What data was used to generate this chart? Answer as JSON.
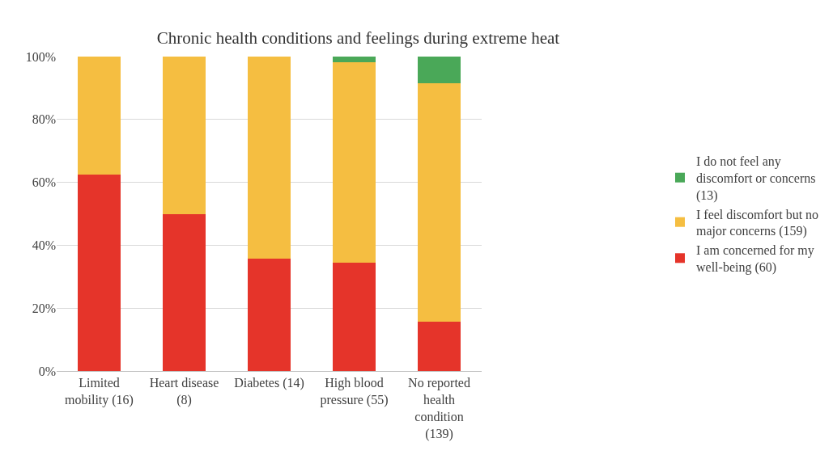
{
  "chart_data": {
    "type": "bar",
    "stacked": true,
    "title": "Chronic health conditions and feelings during extreme heat",
    "categories": [
      "Limited mobility (16)",
      "Heart disease (8)",
      "Diabetes (14)",
      "High blood pressure (55)",
      "No reported health condition (139)"
    ],
    "series": [
      {
        "name": "I am concerned for my well-being (60)",
        "color": "#e5342a",
        "values": [
          62.5,
          50,
          35.7,
          34.5,
          15.8
        ]
      },
      {
        "name": "I feel discomfort but no major concerns (159)",
        "color": "#f5be41",
        "values": [
          37.5,
          50,
          64.3,
          63.6,
          75.6
        ]
      },
      {
        "name": "I do not feel any discomfort or concerns (13)",
        "color": "#4aa858",
        "values": [
          0,
          0,
          0,
          1.8,
          8.6
        ]
      }
    ],
    "ylim": [
      0,
      100
    ],
    "yticks": [
      {
        "value": 0,
        "label": "0%"
      },
      {
        "value": 20,
        "label": "20%"
      },
      {
        "value": 40,
        "label": "40%"
      },
      {
        "value": 60,
        "label": "60%"
      },
      {
        "value": 80,
        "label": "80%"
      },
      {
        "value": 100,
        "label": "100%"
      }
    ],
    "grid": "y",
    "legend": "right"
  }
}
